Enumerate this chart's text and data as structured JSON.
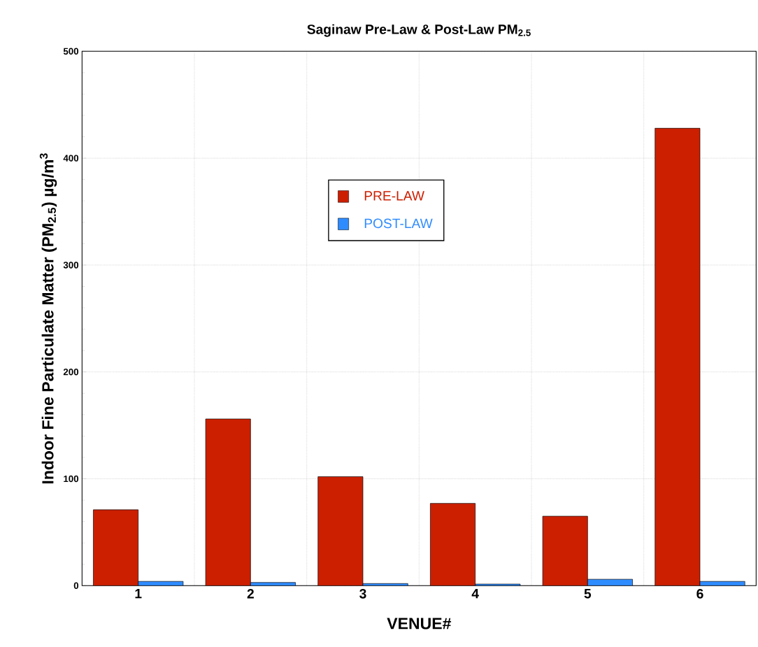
{
  "chart_data": {
    "type": "bar",
    "title": "Saginaw Pre-Law & Post-Law PM$_{2.5}$",
    "xlabel": "VENUE#",
    "ylabel": "Indoor Fine Particulate Matter (PM$_{2.5}$) µg/m$^{3}$",
    "categories": [
      "1",
      "2",
      "3",
      "4",
      "5",
      "6"
    ],
    "series": [
      {
        "name": "PRE-LAW",
        "color": "#cc1f00",
        "values": [
          71,
          156,
          102,
          77,
          65,
          428
        ]
      },
      {
        "name": "POST-LAW",
        "color": "#2f8cff",
        "values": [
          4,
          3,
          2,
          1.5,
          6,
          4
        ]
      }
    ],
    "ylim": [
      0,
      500
    ],
    "yticks": [
      0,
      100,
      200,
      300,
      400,
      500
    ],
    "grid": true,
    "legend": "top"
  }
}
